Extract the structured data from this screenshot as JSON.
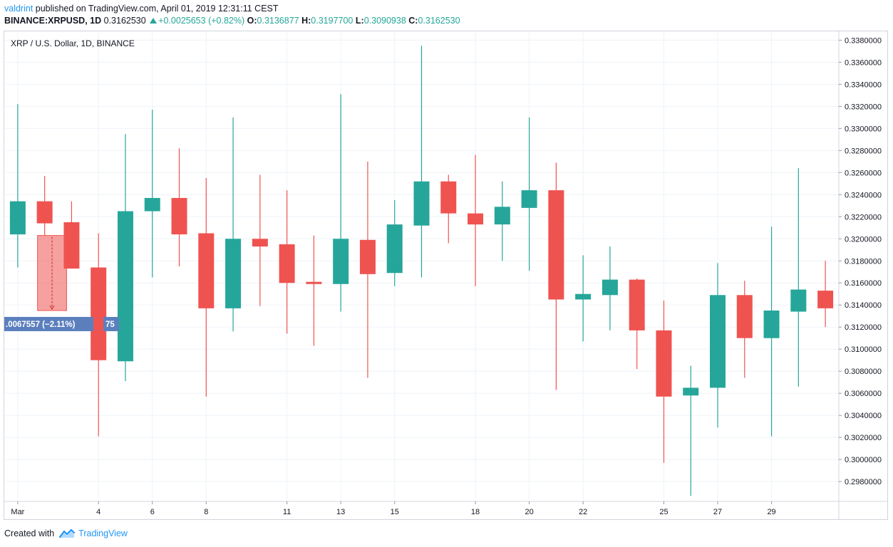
{
  "header": {
    "user": "valdrint",
    "published_text": "published on TradingView.com, April 01, 2019 12:31:11 CEST",
    "symbol": "BINANCE:XRPUSD, 1D",
    "last": "0.3162530",
    "change": "+0.0025653 (+0.82%)",
    "o_label": "O:",
    "o_value": "0.3136877",
    "h_label": "H:",
    "h_value": "0.3197700",
    "l_label": "L:",
    "l_value": "0.3090938",
    "c_label": "C:",
    "c_value": "0.3162530"
  },
  "footer": {
    "created_with": "Created with",
    "brand": "TradingView"
  },
  "colors": {
    "up": "#26a69a",
    "down": "#ef5350",
    "grid": "#eef3f8",
    "axis_text": "#131722",
    "measure_label_bg": "#5b7fbd"
  },
  "measure": {
    "label": ".0067557 (−2.11%)",
    "label_tail": "75",
    "from_price": 0.3203,
    "to_price": 0.3135,
    "start_day": 2,
    "end_day": 3
  },
  "chart_data": {
    "type": "candlestick",
    "title": "XRP / U.S. Dollar, 1D, BINANCE",
    "y_axis_position": "right",
    "ylim": [
      0.2962,
      0.3388
    ],
    "yticks": [
      0.298,
      0.3,
      0.302,
      0.304,
      0.306,
      0.308,
      0.31,
      0.312,
      0.314,
      0.316,
      0.318,
      0.32,
      0.322,
      0.324,
      0.326,
      0.328,
      0.33,
      0.332,
      0.334,
      0.336,
      0.338
    ],
    "ytick_labels": [
      "0.2980000",
      "0.3000000",
      "0.3020000",
      "0.3040000",
      "0.3060000",
      "0.3080000",
      "0.3100000",
      "0.3120000",
      "0.3140000",
      "0.3160000",
      "0.3180000",
      "0.3200000",
      "0.3220000",
      "0.3240000",
      "0.3260000",
      "0.3280000",
      "0.3300000",
      "0.3320000",
      "0.3340000",
      "0.3360000",
      "0.3380000"
    ],
    "xlim": [
      0.5,
      31.5
    ],
    "xticks": [
      1,
      4,
      6,
      8,
      11,
      13,
      15,
      18,
      20,
      22,
      25,
      27,
      29
    ],
    "xtick_labels": [
      "Mar",
      "4",
      "6",
      "8",
      "11",
      "13",
      "15",
      "18",
      "20",
      "22",
      "25",
      "27",
      "29"
    ],
    "grid": true,
    "candles": [
      {
        "day": 1,
        "open": 0.3204,
        "high": 0.3322,
        "low": 0.3174,
        "close": 0.3234
      },
      {
        "day": 2,
        "open": 0.3234,
        "high": 0.3257,
        "low": 0.3203,
        "close": 0.3214
      },
      {
        "day": 3,
        "open": 0.3215,
        "high": 0.3234,
        "low": 0.3173,
        "close": 0.3173
      },
      {
        "day": 4,
        "open": 0.3174,
        "high": 0.3205,
        "low": 0.3021,
        "close": 0.309
      },
      {
        "day": 5,
        "open": 0.3089,
        "high": 0.3295,
        "low": 0.3071,
        "close": 0.3225
      },
      {
        "day": 6,
        "open": 0.3225,
        "high": 0.3317,
        "low": 0.3165,
        "close": 0.3237
      },
      {
        "day": 7,
        "open": 0.3237,
        "high": 0.3282,
        "low": 0.3175,
        "close": 0.3204
      },
      {
        "day": 8,
        "open": 0.3205,
        "high": 0.3255,
        "low": 0.3057,
        "close": 0.3137
      },
      {
        "day": 9,
        "open": 0.3137,
        "high": 0.331,
        "low": 0.3116,
        "close": 0.32
      },
      {
        "day": 10,
        "open": 0.32,
        "high": 0.3258,
        "low": 0.3139,
        "close": 0.3193
      },
      {
        "day": 11,
        "open": 0.3195,
        "high": 0.3244,
        "low": 0.3114,
        "close": 0.316
      },
      {
        "day": 12,
        "open": 0.3161,
        "high": 0.3203,
        "low": 0.3103,
        "close": 0.3159
      },
      {
        "day": 13,
        "open": 0.3159,
        "high": 0.3331,
        "low": 0.3134,
        "close": 0.32
      },
      {
        "day": 14,
        "open": 0.3199,
        "high": 0.327,
        "low": 0.3074,
        "close": 0.3168
      },
      {
        "day": 15,
        "open": 0.3169,
        "high": 0.3235,
        "low": 0.3157,
        "close": 0.3213
      },
      {
        "day": 16,
        "open": 0.3212,
        "high": 0.3375,
        "low": 0.3165,
        "close": 0.3252
      },
      {
        "day": 17,
        "open": 0.3252,
        "high": 0.3258,
        "low": 0.3196,
        "close": 0.3223
      },
      {
        "day": 18,
        "open": 0.3223,
        "high": 0.3276,
        "low": 0.3157,
        "close": 0.3213
      },
      {
        "day": 19,
        "open": 0.3213,
        "high": 0.3252,
        "low": 0.318,
        "close": 0.3229
      },
      {
        "day": 20,
        "open": 0.3228,
        "high": 0.331,
        "low": 0.3171,
        "close": 0.3244
      },
      {
        "day": 21,
        "open": 0.3244,
        "high": 0.3269,
        "low": 0.3063,
        "close": 0.3145
      },
      {
        "day": 22,
        "open": 0.3145,
        "high": 0.3185,
        "low": 0.3107,
        "close": 0.315
      },
      {
        "day": 23,
        "open": 0.3149,
        "high": 0.3193,
        "low": 0.3117,
        "close": 0.3163
      },
      {
        "day": 24,
        "open": 0.3163,
        "high": 0.3164,
        "low": 0.3082,
        "close": 0.3117
      },
      {
        "day": 25,
        "open": 0.3117,
        "high": 0.3144,
        "low": 0.2997,
        "close": 0.3057
      },
      {
        "day": 26,
        "open": 0.3058,
        "high": 0.3085,
        "low": 0.2967,
        "close": 0.3065
      },
      {
        "day": 27,
        "open": 0.3065,
        "high": 0.3178,
        "low": 0.3029,
        "close": 0.3149
      },
      {
        "day": 28,
        "open": 0.3149,
        "high": 0.3162,
        "low": 0.3074,
        "close": 0.311
      },
      {
        "day": 29,
        "open": 0.311,
        "high": 0.3211,
        "low": 0.3021,
        "close": 0.3135
      },
      {
        "day": 30,
        "open": 0.3134,
        "high": 0.3264,
        "low": 0.3066,
        "close": 0.3154
      },
      {
        "day": 31,
        "open": 0.3153,
        "high": 0.318,
        "low": 0.312,
        "close": 0.3137
      }
    ]
  }
}
